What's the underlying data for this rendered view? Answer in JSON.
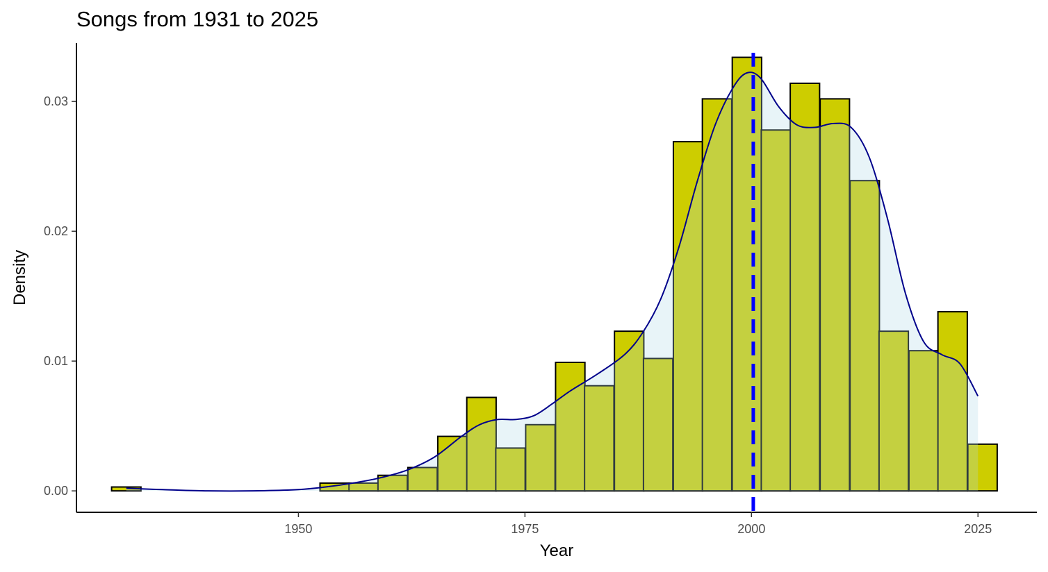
{
  "chart_data": {
    "type": "bar",
    "title": "Songs from 1931 to 2025",
    "xlabel": "Year",
    "ylabel": "Density",
    "xlim": [
      1925.5,
      2031.5
    ],
    "ylim": [
      -0.00165,
      0.0345
    ],
    "x_ticks": [
      1950,
      1975,
      2000,
      2025
    ],
    "x_tick_labels": [
      "1950",
      "1975",
      "2000",
      "2025"
    ],
    "y_ticks": [
      0.0,
      0.01,
      0.02,
      0.03
    ],
    "y_tick_labels": [
      "0.00",
      "0.01",
      "0.02",
      "0.03"
    ],
    "bin_width": 3.24,
    "bin_centers": [
      1931.0,
      1954.0,
      1957.2,
      1960.4,
      1963.7,
      1967.0,
      1970.2,
      1973.4,
      1976.7,
      1980.0,
      1983.2,
      1986.5,
      1989.7,
      1993.0,
      1996.2,
      1999.5,
      2002.7,
      2005.9,
      2009.2,
      2012.5,
      2015.7,
      2019.0,
      2022.2,
      2025.5
    ],
    "values": [
      0.0003,
      0.0006,
      0.0006,
      0.0012,
      0.0018,
      0.0042,
      0.0072,
      0.0033,
      0.0051,
      0.0099,
      0.0081,
      0.0123,
      0.0102,
      0.0269,
      0.0302,
      0.0334,
      0.0278,
      0.0314,
      0.0302,
      0.0239,
      0.0123,
      0.0108,
      0.0138,
      0.0036
    ],
    "density_curve": {
      "x": [
        1931,
        1935,
        1940,
        1945,
        1950,
        1953,
        1956,
        1959,
        1962,
        1965,
        1968,
        1970,
        1972,
        1974,
        1976,
        1978,
        1980,
        1983,
        1986,
        1988,
        1990,
        1992,
        1994,
        1996,
        1998,
        1999.5,
        2001,
        2003,
        2005,
        2007,
        2009,
        2011,
        2013,
        2015,
        2017,
        2019,
        2021,
        2023,
        2025
      ],
      "y": [
        0.0002,
        0.0001,
        0.0,
        0.0,
        0.0001,
        0.0003,
        0.0006,
        0.001,
        0.0016,
        0.0026,
        0.0042,
        0.0051,
        0.0055,
        0.0055,
        0.0058,
        0.0067,
        0.0077,
        0.009,
        0.0105,
        0.0122,
        0.0148,
        0.0188,
        0.0238,
        0.0282,
        0.0311,
        0.0322,
        0.0318,
        0.0296,
        0.0282,
        0.028,
        0.0283,
        0.028,
        0.0257,
        0.021,
        0.0152,
        0.0115,
        0.0105,
        0.0098,
        0.0073
      ]
    },
    "mean_line_x": 2000.2,
    "colors": {
      "bar_fill": "#cdcd00",
      "bar_stroke": "#000000",
      "density_fill": "#add8e6",
      "density_line": "#00008b",
      "mean_line": "#0000ff"
    }
  }
}
